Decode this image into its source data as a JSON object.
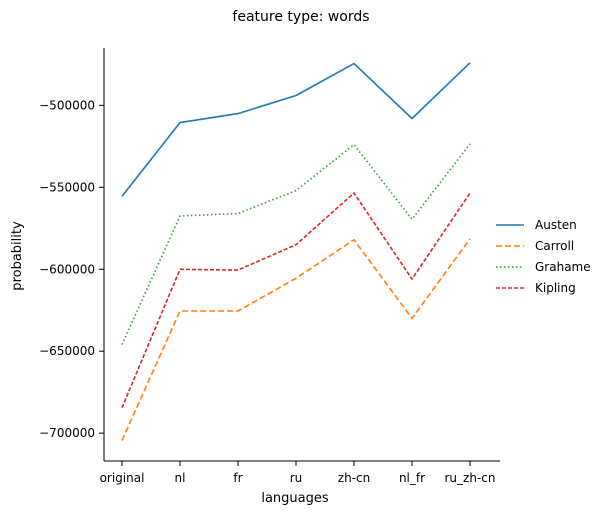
{
  "chart_data": {
    "type": "line",
    "title": "feature type: words",
    "xlabel": "languages",
    "ylabel": "probability",
    "categories": [
      "original",
      "nl",
      "fr",
      "ru",
      "zh-cn",
      "nl_fr",
      "ru_zh-cn"
    ],
    "ylim": [
      -717000,
      -465000
    ],
    "yticks": [
      -500000,
      -550000,
      -600000,
      -650000,
      -700000
    ],
    "ytick_labels": [
      "−500000",
      "−550000",
      "−600000",
      "−650000",
      "−700000"
    ],
    "grid": false,
    "legend_placement": "right",
    "series": [
      {
        "name": "Austen",
        "color": "#1f77b4",
        "dash": "solid",
        "values": [
          -555500,
          -510500,
          -505000,
          -494000,
          -474500,
          -508000,
          -474000
        ]
      },
      {
        "name": "Carroll",
        "color": "#ff7f0e",
        "dash": "dashed",
        "values": [
          -704500,
          -625500,
          -625500,
          -605500,
          -582000,
          -630000,
          -581500
        ]
      },
      {
        "name": "Grahame",
        "color": "#2ca02c",
        "dash": "dotted",
        "values": [
          -646000,
          -567500,
          -566000,
          -552000,
          -524000,
          -569500,
          -523500
        ]
      },
      {
        "name": "Kipling",
        "color": "#d62728",
        "dash": "densely-dashed",
        "values": [
          -684500,
          -600000,
          -600500,
          -585000,
          -553500,
          -606000,
          -553500
        ]
      }
    ]
  }
}
